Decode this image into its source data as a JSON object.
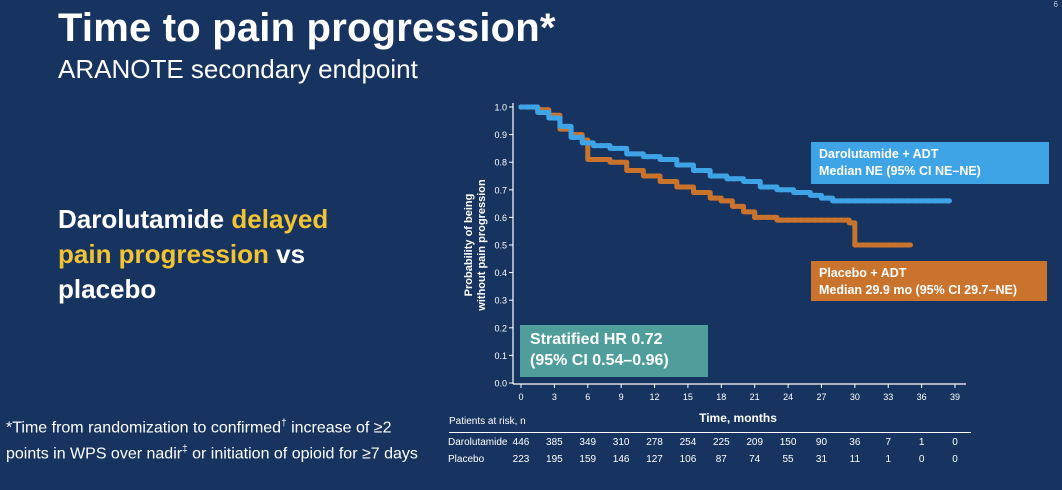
{
  "slide": {
    "title": "Time to pain progression*",
    "subtitle": "ARANOTE secondary endpoint",
    "headline_part1": "Darolutamide ",
    "headline_highlight": "delayed pain progression",
    "headline_part2": " vs placebo",
    "footnote_part1": "*Time from randomization to confirmed",
    "footnote_dagger": "†",
    "footnote_part2": " increase of ≥2 points in WPS over nadir",
    "footnote_ddagger": "‡",
    "footnote_part3": " or initiation of opioid for ≥7 days",
    "corner_mark": "6"
  },
  "colors": {
    "background": "#17335f",
    "darolutamide": "#3ea4e6",
    "placebo": "#c9732c",
    "hr_box": "#4f9e9c",
    "highlight": "#f2c431"
  },
  "chart_data": {
    "type": "line",
    "xlabel": "Time, months",
    "ylabel_line1": "Probability of being",
    "ylabel_line2": "without pain progression",
    "xlim": [
      0,
      39
    ],
    "ylim": [
      0,
      1.0
    ],
    "x_ticks": [
      "0",
      "3",
      "6",
      "9",
      "12",
      "15",
      "18",
      "21",
      "24",
      "27",
      "30",
      "33",
      "36",
      "39"
    ],
    "y_ticks": [
      "0.0",
      "0.1",
      "0.2",
      "0.3",
      "0.4",
      "0.5",
      "0.6",
      "0.7",
      "0.8",
      "0.9",
      "1.0"
    ],
    "series": [
      {
        "name": "Darolutamide + ADT",
        "color": "#3ea4e6",
        "x": [
          0,
          1.5,
          2.5,
          3.5,
          4.5,
          5.5,
          6.5,
          8,
          9.5,
          11,
          12.5,
          14,
          15.5,
          17,
          18.5,
          20,
          21.5,
          23,
          24.5,
          26,
          27,
          28,
          30,
          33,
          35.5,
          38.5
        ],
        "y": [
          1.0,
          0.98,
          0.96,
          0.93,
          0.89,
          0.87,
          0.86,
          0.85,
          0.83,
          0.82,
          0.81,
          0.79,
          0.77,
          0.75,
          0.74,
          0.73,
          0.71,
          0.7,
          0.69,
          0.68,
          0.67,
          0.66,
          0.66,
          0.66,
          0.66,
          0.66
        ]
      },
      {
        "name": "Placebo + ADT",
        "color": "#c9732c",
        "x": [
          0,
          1.5,
          2.5,
          3.5,
          4.5,
          5.5,
          6,
          8,
          9.5,
          11,
          12.5,
          14,
          15.5,
          17,
          18,
          19,
          20,
          21,
          23,
          25,
          27,
          29,
          29.5,
          30,
          32,
          35
        ],
        "y": [
          1.0,
          0.99,
          0.97,
          0.92,
          0.9,
          0.88,
          0.81,
          0.8,
          0.77,
          0.75,
          0.73,
          0.71,
          0.69,
          0.67,
          0.66,
          0.64,
          0.62,
          0.6,
          0.59,
          0.59,
          0.59,
          0.59,
          0.58,
          0.5,
          0.5,
          0.5
        ]
      }
    ],
    "annotations": {
      "daro_line1": "Darolutamide + ADT",
      "daro_line2": "Median NE (95% CI NE–NE)",
      "placebo_line1": "Placebo + ADT",
      "placebo_line2": "Median 29.9 mo (95% CI 29.7–NE)",
      "hr_line1": "Stratified HR 0.72",
      "hr_line2": "(95% CI 0.54–0.96)"
    },
    "risk_table": {
      "title": "Patients at risk, n",
      "rows": [
        {
          "label": "Darolutamide",
          "values": [
            "446",
            "385",
            "349",
            "310",
            "278",
            "254",
            "225",
            "209",
            "150",
            "90",
            "36",
            "7",
            "1",
            "0"
          ]
        },
        {
          "label": "Placebo",
          "values": [
            "223",
            "195",
            "159",
            "146",
            "127",
            "106",
            "87",
            "74",
            "55",
            "31",
            "11",
            "1",
            "0",
            "0"
          ]
        }
      ]
    }
  }
}
